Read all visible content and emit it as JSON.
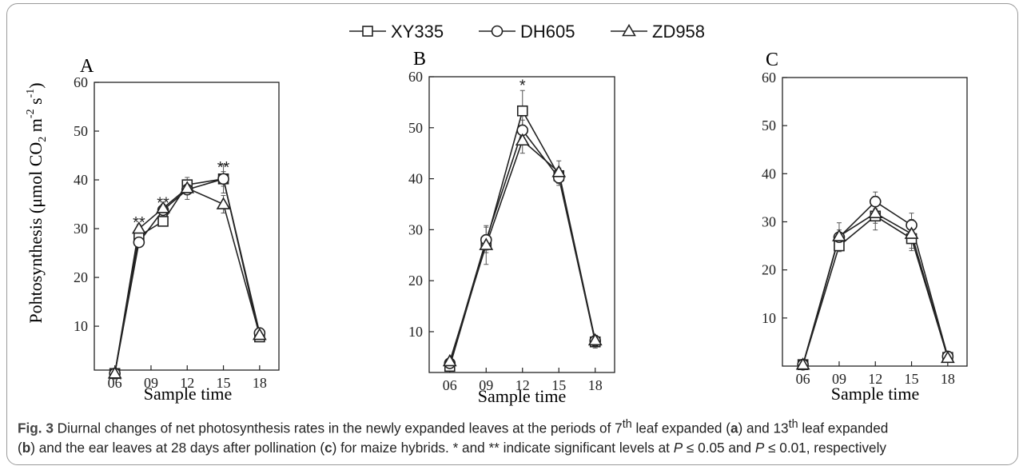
{
  "legend": {
    "entries": [
      "XY335",
      "DH605",
      "ZD958"
    ],
    "markers": [
      "square",
      "circle",
      "triangle"
    ]
  },
  "chart_data": [
    {
      "type": "line",
      "panel_label": "A",
      "xlabel": "Sample time",
      "ylabel": "Pohtosynthesis (μmol CO2 m-2 s-1)",
      "ylabel_parts": {
        "main": "Pohtosynthesis (μmol CO",
        "sub": "2",
        "mid": " m",
        "sup1": "-2",
        "mid2": " s",
        "sup2": "-1",
        "end": ")"
      },
      "xlim": [
        4.3,
        19.6
      ],
      "ylim": [
        1,
        60
      ],
      "x_ticks": [
        6,
        9,
        12,
        15,
        18
      ],
      "x_tick_labels": [
        "06",
        "09",
        "12",
        "15",
        "18"
      ],
      "y_ticks": [
        10,
        20,
        30,
        40,
        50,
        60
      ],
      "y_tick_labels": [
        "10",
        "20",
        "30",
        "40",
        "50",
        "60"
      ],
      "series": [
        {
          "name": "XY335",
          "x": [
            6,
            8,
            10,
            12,
            15,
            18
          ],
          "y": [
            0.3,
            28.5,
            31.5,
            39.0,
            40.2,
            7.8
          ],
          "err": [
            0,
            0.8,
            0.8,
            1.5,
            1.5,
            0.5
          ]
        },
        {
          "name": "DH605",
          "x": [
            6,
            8,
            10,
            12,
            15,
            18
          ],
          "y": [
            0.3,
            27.2,
            33.8,
            38.0,
            40.2,
            8.6
          ],
          "err": [
            0,
            0.8,
            0.8,
            2.0,
            2.9,
            0.5
          ]
        },
        {
          "name": "ZD958",
          "x": [
            6,
            8,
            10,
            12,
            15,
            18
          ],
          "y": [
            0.3,
            30.0,
            34.2,
            38.3,
            35.0,
            8.2
          ],
          "err": [
            0,
            0.8,
            0.8,
            1.0,
            1.8,
            0.5
          ]
        }
      ],
      "annotations": [
        {
          "text": "**",
          "x": 8,
          "y": 31.5
        },
        {
          "text": "**",
          "x": 10,
          "y": 35.5
        },
        {
          "text": "**",
          "x": 15,
          "y": 42.8
        }
      ]
    },
    {
      "type": "line",
      "panel_label": "B",
      "xlabel": "Sample time",
      "xlim": [
        4.3,
        19.6
      ],
      "ylim": [
        2,
        60
      ],
      "x_ticks": [
        6,
        9,
        12,
        15,
        18
      ],
      "x_tick_labels": [
        "06",
        "09",
        "12",
        "15",
        "18"
      ],
      "y_ticks": [
        10,
        20,
        30,
        40,
        50,
        60
      ],
      "y_tick_labels": [
        "10",
        "20",
        "30",
        "40",
        "50",
        "60"
      ],
      "series": [
        {
          "name": "XY335",
          "x": [
            6,
            9,
            12,
            15,
            18
          ],
          "y": [
            3.2,
            27.5,
            53.3,
            40.6,
            8.0
          ],
          "err": [
            0.5,
            1.5,
            4.0,
            1.5,
            1.2
          ]
        },
        {
          "name": "DH605",
          "x": [
            6,
            9,
            12,
            15,
            18
          ],
          "y": [
            3.8,
            28.0,
            49.5,
            40.2,
            8.2
          ],
          "err": [
            0.5,
            2.5,
            2.0,
            1.5,
            1.0
          ]
        },
        {
          "name": "ZD958",
          "x": [
            6,
            9,
            12,
            15,
            18
          ],
          "y": [
            4.2,
            27.0,
            47.5,
            41.3,
            8.3
          ],
          "err": [
            0.5,
            3.8,
            2.5,
            2.2,
            1.0
          ]
        }
      ],
      "annotations": [
        {
          "text": "*",
          "x": 12,
          "y": 58.5
        }
      ]
    },
    {
      "type": "line",
      "panel_label": "C",
      "xlabel": "Sample time",
      "xlim": [
        4.3,
        19.6
      ],
      "ylim": [
        0,
        60
      ],
      "x_ticks": [
        6,
        9,
        12,
        15,
        18
      ],
      "x_tick_labels": [
        "06",
        "09",
        "12",
        "15",
        "18"
      ],
      "y_ticks": [
        10,
        20,
        30,
        40,
        50,
        60
      ],
      "y_tick_labels": [
        "10",
        "20",
        "30",
        "40",
        "50",
        "60"
      ],
      "series": [
        {
          "name": "XY335",
          "x": [
            6,
            9,
            12,
            15,
            18
          ],
          "y": [
            0.3,
            25.0,
            31.2,
            26.5,
            1.8
          ],
          "err": [
            0,
            1.2,
            1.5,
            2.5,
            0.3
          ]
        },
        {
          "name": "DH605",
          "x": [
            6,
            9,
            12,
            15,
            18
          ],
          "y": [
            0.3,
            26.8,
            34.2,
            29.3,
            2.0
          ],
          "err": [
            0,
            1.5,
            2.0,
            2.5,
            0.3
          ]
        },
        {
          "name": "ZD958",
          "x": [
            6,
            9,
            12,
            15,
            18
          ],
          "y": [
            0.3,
            27.0,
            31.8,
            27.5,
            1.7
          ],
          "err": [
            0,
            2.8,
            3.5,
            3.0,
            0.3
          ]
        }
      ],
      "annotations": []
    }
  ],
  "caption": {
    "fig_label": "Fig. 3",
    "line1_a": " Diurnal changes of net photosynthesis rates in the newly expanded leaves at the periods of 7",
    "line1_sup1": "th",
    "line1_b": " leaf expanded (",
    "line1_c": ") and 13",
    "line1_sup2": "th",
    "line1_d": " leaf expanded",
    "line2_a": "(",
    "line2_b": ") and the ear leaves at 28 days after pollination (",
    "line2_c": ") for maize hybrids. * and ** indicate significant levels at ",
    "line2_d": " ≤ 0.05 and ",
    "line2_e": " ≤ 0.01, respectively",
    "letter_a": "a",
    "letter_b": "b",
    "letter_c": "c",
    "p_symbol": "P"
  }
}
